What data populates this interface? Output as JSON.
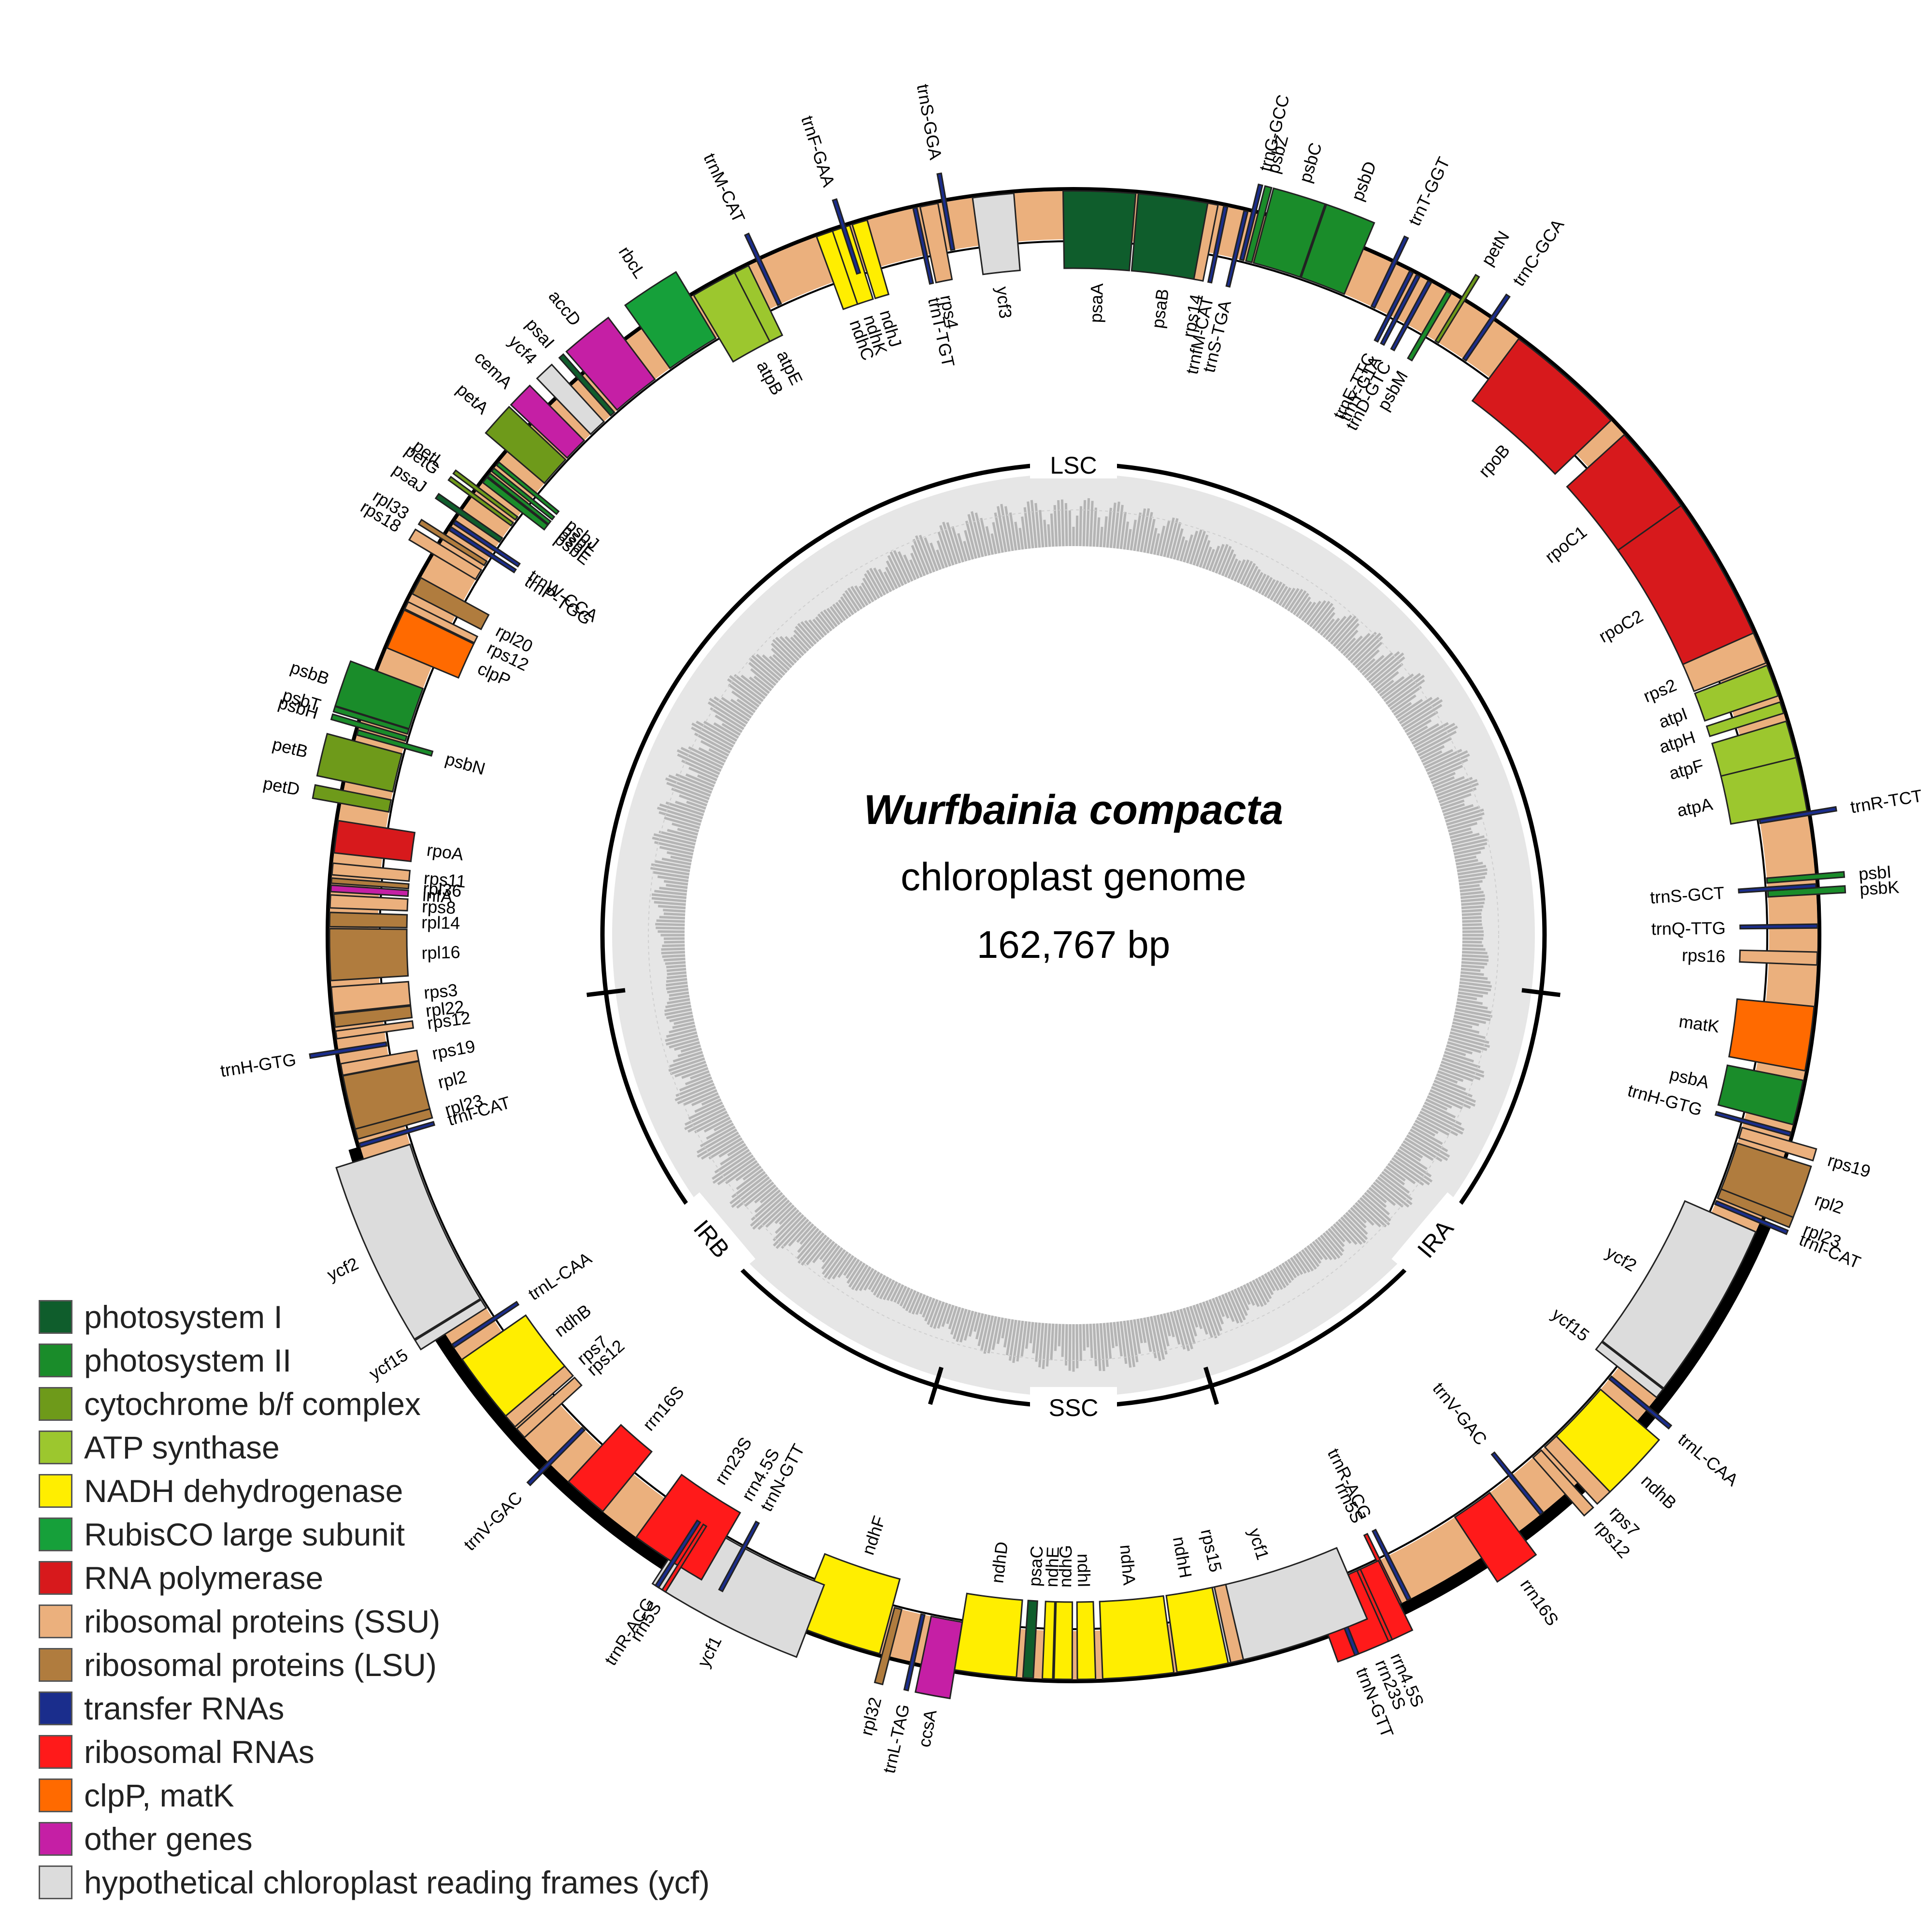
{
  "title": {
    "species": "Wurfbainia compacta",
    "subtitle": "chloroplast genome",
    "size": "162,767 bp"
  },
  "regions": [
    {
      "label": "LSC"
    },
    {
      "label": "IRA"
    },
    {
      "label": "SSC"
    },
    {
      "label": "IRB"
    }
  ],
  "categories": [
    {
      "key": "psI",
      "label": "photosystem I",
      "color": "#0f5d2c"
    },
    {
      "key": "psII",
      "label": "photosystem II",
      "color": "#1a8c2a"
    },
    {
      "key": "cyt",
      "label": "cytochrome b/f complex",
      "color": "#6e9a1a"
    },
    {
      "key": "atp",
      "label": "ATP synthase",
      "color": "#9cc72e"
    },
    {
      "key": "ndh",
      "label": "NADH dehydrogenase",
      "color": "#ffee00"
    },
    {
      "key": "rbc",
      "label": "RubisCO large subunit",
      "color": "#16a03a"
    },
    {
      "key": "rpo",
      "label": "RNA polymerase",
      "color": "#d7191c"
    },
    {
      "key": "ssu",
      "label": "ribosomal proteins (SSU)",
      "color": "#ebb07d"
    },
    {
      "key": "lsu",
      "label": "ribosomal proteins (LSU)",
      "color": "#b07c3e"
    },
    {
      "key": "trna",
      "label": "transfer RNAs",
      "color": "#1a2d8c"
    },
    {
      "key": "rrna",
      "label": "ribosomal RNAs",
      "color": "#ff1a1a"
    },
    {
      "key": "clp",
      "label": "clpP, matK",
      "color": "#ff6a00"
    },
    {
      "key": "other",
      "label": "other genes",
      "color": "#c51fa5"
    },
    {
      "key": "ycf",
      "label": "hypothetical chloroplast reading frames (ycf)",
      "color": "#dcdcdc"
    }
  ],
  "genes": [
    {
      "name": "psaA",
      "cat": "psI",
      "a": 2.0,
      "s": 5.6,
      "side": "in"
    },
    {
      "name": "psaB",
      "cat": "psI",
      "a": 7.8,
      "s": 5.6,
      "side": "in"
    },
    {
      "name": "rps14",
      "cat": "ssu",
      "a": 10.8,
      "s": 0.8,
      "side": "in"
    },
    {
      "name": "trnfM-CAT",
      "cat": "trna",
      "a": 11.8,
      "s": 0.3,
      "side": "in"
    },
    {
      "name": "trnS-TGA",
      "cat": "trna",
      "a": 13.4,
      "s": 0.3,
      "side": "in"
    },
    {
      "name": "trnG-GCC",
      "cat": "trna",
      "a": 14.0,
      "s": 0.3,
      "side": "out"
    },
    {
      "name": "psbZ",
      "cat": "psII",
      "a": 14.6,
      "s": 0.5,
      "side": "out"
    },
    {
      "name": "psbC",
      "cat": "psII",
      "a": 17.0,
      "s": 4.0,
      "side": "out"
    },
    {
      "name": "psbD",
      "cat": "psII",
      "a": 21.0,
      "s": 3.8,
      "side": "out"
    },
    {
      "name": "trnT-GGT",
      "cat": "trna",
      "a": 25.5,
      "s": 0.3,
      "side": "out"
    },
    {
      "name": "trnE-TTC",
      "cat": "trna",
      "a": 27.0,
      "s": 0.3,
      "side": "in"
    },
    {
      "name": "trnY-GTA",
      "cat": "trna",
      "a": 27.6,
      "s": 0.3,
      "side": "in"
    },
    {
      "name": "trnD-GTC",
      "cat": "trna",
      "a": 28.6,
      "s": 0.3,
      "side": "in"
    },
    {
      "name": "psbM",
      "cat": "psII",
      "a": 30.3,
      "s": 0.4,
      "side": "in"
    },
    {
      "name": "petN",
      "cat": "cyt",
      "a": 31.5,
      "s": 0.3,
      "side": "out"
    },
    {
      "name": "trnC-GCA",
      "cat": "trna",
      "a": 34.2,
      "s": 0.3,
      "side": "out"
    },
    {
      "name": "rpoB",
      "cat": "rpo",
      "a": 41.5,
      "s": 9.5,
      "side": "in"
    },
    {
      "name": "rpoC1",
      "cat": "rpo",
      "a": 51.5,
      "s": 7.5,
      "side": "in"
    },
    {
      "name": "rpoC2",
      "cat": "rpo",
      "a": 60.5,
      "s": 11.5,
      "side": "in"
    },
    {
      "name": "rps2",
      "cat": "ssu",
      "a": 67.3,
      "s": 2.5,
      "side": "in"
    },
    {
      "name": "atpI",
      "cat": "atp",
      "a": 70.0,
      "s": 2.5,
      "side": "in"
    },
    {
      "name": "atpH",
      "cat": "atp",
      "a": 72.2,
      "s": 0.9,
      "side": "in"
    },
    {
      "name": "atpF",
      "cat": "atp",
      "a": 74.8,
      "s": 3.0,
      "side": "in"
    },
    {
      "name": "atpA",
      "cat": "atp",
      "a": 78.3,
      "s": 4.2,
      "side": "in"
    },
    {
      "name": "trnR-TCT",
      "cat": "trna",
      "a": 80.6,
      "s": 0.3,
      "side": "out"
    },
    {
      "name": "psbI",
      "cat": "psII",
      "a": 85.5,
      "s": 0.4,
      "side": "out"
    },
    {
      "name": "psbK",
      "cat": "psII",
      "a": 86.6,
      "s": 0.5,
      "side": "out"
    },
    {
      "name": "trnS-GCT",
      "cat": "trna",
      "a": 86.2,
      "s": 0.3,
      "side": "in"
    },
    {
      "name": "trnQ-TTG",
      "cat": "trna",
      "a": 89.3,
      "s": 0.3,
      "side": "in"
    },
    {
      "name": "rps16",
      "cat": "ssu",
      "a": 91.8,
      "s": 1.0,
      "side": "in"
    },
    {
      "name": "matK",
      "cat": "clp",
      "a": 98.0,
      "s": 5.0,
      "side": "in"
    },
    {
      "name": "psbA",
      "cat": "psII",
      "a": 103.0,
      "s": 3.5,
      "side": "in"
    },
    {
      "name": "trnH-GTG",
      "cat": "trna",
      "a": 105.5,
      "s": 0.3,
      "side": "in"
    },
    {
      "name": "rps19",
      "cat": "ssu",
      "a": 106.5,
      "s": 0.9,
      "side": "out"
    },
    {
      "name": "rpl2",
      "cat": "lsu",
      "a": 109.5,
      "s": 4.2,
      "side": "out"
    },
    {
      "name": "rpl23",
      "cat": "lsu",
      "a": 111.8,
      "s": 0.8,
      "side": "out"
    },
    {
      "name": "trnI-CAT",
      "cat": "trna",
      "a": 112.6,
      "s": 0.3,
      "side": "out"
    },
    {
      "name": "ycf2",
      "cat": "ycf",
      "a": 120.5,
      "s": 14.0,
      "side": "in"
    },
    {
      "name": "ycf15",
      "cat": "ycf",
      "a": 128.0,
      "s": 0.8,
      "side": "in"
    },
    {
      "name": "trnL-CAA",
      "cat": "trna",
      "a": 129.5,
      "s": 0.3,
      "side": "out"
    },
    {
      "name": "ndhB",
      "cat": "ndh",
      "a": 133.5,
      "s": 5.5,
      "side": "out"
    },
    {
      "name": "rps7",
      "cat": "ssu",
      "a": 136.7,
      "s": 1.3,
      "side": "out"
    },
    {
      "name": "rps12",
      "cat": "ssu",
      "a": 138.2,
      "s": 0.9,
      "side": "out"
    },
    {
      "name": "trnV-GAC",
      "cat": "trna",
      "a": 141.0,
      "s": 0.3,
      "side": "in"
    },
    {
      "name": "rrn16S",
      "cat": "rrna",
      "a": 145.0,
      "s": 3.5,
      "side": "out"
    },
    {
      "name": "trnR-ACG",
      "cat": "trna",
      "a": 153.2,
      "s": 0.3,
      "side": "in"
    },
    {
      "name": "rrn5S",
      "cat": "rrna",
      "a": 154.0,
      "s": 0.3,
      "side": "in"
    },
    {
      "name": "rrn23S",
      "cat": "rrna",
      "a": 157.0,
      "s": 6.0,
      "side": "out"
    },
    {
      "name": "rrn4.5S",
      "cat": "rrna",
      "a": 155.8,
      "s": 0.3,
      "side": "out"
    },
    {
      "name": "trnN-GTT",
      "cat": "trna",
      "a": 158.5,
      "s": 0.3,
      "side": "out"
    },
    {
      "name": "ycf1",
      "cat": "ycf",
      "a": 163.0,
      "s": 12.5,
      "side": "in"
    },
    {
      "name": "rps15",
      "cat": "ssu",
      "a": 167.3,
      "s": 1.0,
      "side": "in"
    },
    {
      "name": "ndhH",
      "cat": "ndh",
      "a": 170.0,
      "s": 4.0,
      "side": "in"
    },
    {
      "name": "ndhA",
      "cat": "ndh",
      "a": 175.0,
      "s": 5.5,
      "side": "in"
    },
    {
      "name": "ndhI",
      "cat": "ndh",
      "a": 179.0,
      "s": 1.4,
      "side": "in"
    },
    {
      "name": "ndhG",
      "cat": "ndh",
      "a": 180.8,
      "s": 1.4,
      "side": "in"
    },
    {
      "name": "ndhE",
      "cat": "ndh",
      "a": 182.0,
      "s": 0.8,
      "side": "in"
    },
    {
      "name": "psaC",
      "cat": "psI",
      "a": 183.5,
      "s": 0.8,
      "side": "in"
    },
    {
      "name": "ndhD",
      "cat": "ndh",
      "a": 186.8,
      "s": 4.8,
      "side": "in"
    },
    {
      "name": "ccsA",
      "cat": "other",
      "a": 190.5,
      "s": 2.6,
      "side": "out"
    },
    {
      "name": "trnL-TAG",
      "cat": "trna",
      "a": 192.5,
      "s": 0.3,
      "side": "out"
    },
    {
      "name": "rpl32",
      "cat": "lsu",
      "a": 194.6,
      "s": 0.6,
      "side": "out"
    },
    {
      "name": "ndhF",
      "cat": "ndh",
      "a": 198.5,
      "s": 6.8,
      "side": "in"
    },
    {
      "name": "ycf1",
      "cat": "ycf",
      "a": 207.0,
      "s": 12.0,
      "side": "out"
    },
    {
      "name": "trnN-GTT",
      "cat": "trna",
      "a": 208.3,
      "s": 0.3,
      "side": "in"
    },
    {
      "name": "rrn4.5S",
      "cat": "rrna",
      "a": 210.2,
      "s": 0.3,
      "side": "in"
    },
    {
      "name": "rrn23S",
      "cat": "rrna",
      "a": 213.0,
      "s": 6.0,
      "side": "in"
    },
    {
      "name": "rrn5S",
      "cat": "rrna",
      "a": 212.0,
      "s": 0.3,
      "side": "out"
    },
    {
      "name": "trnR-ACG",
      "cat": "trna",
      "a": 212.6,
      "s": 0.3,
      "side": "out"
    },
    {
      "name": "rrn16S",
      "cat": "rrna",
      "a": 221.0,
      "s": 3.5,
      "side": "in"
    },
    {
      "name": "trnV-GAC",
      "cat": "trna",
      "a": 224.8,
      "s": 0.3,
      "side": "out"
    },
    {
      "name": "rps12",
      "cat": "ssu",
      "a": 228.0,
      "s": 0.9,
      "side": "in"
    },
    {
      "name": "rps7",
      "cat": "ssu",
      "a": 229.3,
      "s": 1.3,
      "side": "in"
    },
    {
      "name": "ndhB",
      "cat": "ndh",
      "a": 232.5,
      "s": 5.5,
      "side": "in"
    },
    {
      "name": "trnL-CAA",
      "cat": "trna",
      "a": 236.5,
      "s": 0.3,
      "side": "in"
    },
    {
      "name": "ycf15",
      "cat": "ycf",
      "a": 238.0,
      "s": 0.8,
      "side": "out"
    },
    {
      "name": "ycf2",
      "cat": "ycf",
      "a": 245.5,
      "s": 14.0,
      "side": "out"
    },
    {
      "name": "trnI-CAT",
      "cat": "trna",
      "a": 253.6,
      "s": 0.3,
      "side": "in"
    },
    {
      "name": "rpl23",
      "cat": "lsu",
      "a": 254.5,
      "s": 0.8,
      "side": "in"
    },
    {
      "name": "rpl2",
      "cat": "lsu",
      "a": 257.0,
      "s": 4.2,
      "side": "in"
    },
    {
      "name": "rps19",
      "cat": "ssu",
      "a": 259.6,
      "s": 0.9,
      "side": "in"
    },
    {
      "name": "trnH-GTG",
      "cat": "trna",
      "a": 261.0,
      "s": 0.3,
      "side": "out"
    },
    {
      "name": "rps12",
      "cat": "ssu",
      "a": 262.3,
      "s": 0.6,
      "side": "in"
    },
    {
      "name": "rpl22",
      "cat": "lsu",
      "a": 263.4,
      "s": 1.0,
      "side": "in"
    },
    {
      "name": "rps3",
      "cat": "ssu",
      "a": 265.0,
      "s": 2.0,
      "side": "in"
    },
    {
      "name": "rpl16",
      "cat": "lsu",
      "a": 268.5,
      "s": 4.0,
      "side": "in"
    },
    {
      "name": "rpl14",
      "cat": "lsu",
      "a": 271.2,
      "s": 1.1,
      "side": "in"
    },
    {
      "name": "rps8",
      "cat": "ssu",
      "a": 272.6,
      "s": 1.0,
      "side": "in"
    },
    {
      "name": "infA",
      "cat": "other",
      "a": 273.6,
      "s": 0.5,
      "side": "in"
    },
    {
      "name": "rpl36",
      "cat": "lsu",
      "a": 274.2,
      "s": 0.4,
      "side": "in"
    },
    {
      "name": "rps11",
      "cat": "ssu",
      "a": 275.1,
      "s": 0.9,
      "side": "in"
    },
    {
      "name": "rpoA",
      "cat": "rpo",
      "a": 277.6,
      "s": 2.5,
      "side": "in"
    },
    {
      "name": "petD",
      "cat": "cyt",
      "a": 280.7,
      "s": 1.0,
      "side": "out"
    },
    {
      "name": "petB",
      "cat": "cyt",
      "a": 283.5,
      "s": 3.2,
      "side": "out"
    },
    {
      "name": "psbN",
      "cat": "psII",
      "a": 285.8,
      "s": 0.4,
      "side": "in"
    },
    {
      "name": "psbH",
      "cat": "psII",
      "a": 286.4,
      "s": 0.4,
      "side": "out"
    },
    {
      "name": "psbT",
      "cat": "psII",
      "a": 287.0,
      "s": 0.4,
      "side": "out"
    },
    {
      "name": "psbB",
      "cat": "psII",
      "a": 289.0,
      "s": 3.5,
      "side": "out"
    },
    {
      "name": "clpP",
      "cat": "clp",
      "a": 294.3,
      "s": 3.2,
      "side": "in"
    },
    {
      "name": "rps12",
      "cat": "ssu",
      "a": 296.3,
      "s": 0.6,
      "side": "in"
    },
    {
      "name": "rpl20",
      "cat": "lsu",
      "a": 298.0,
      "s": 1.4,
      "side": "in"
    },
    {
      "name": "rps18",
      "cat": "ssu",
      "a": 301.2,
      "s": 0.9,
      "side": "out"
    },
    {
      "name": "rpl33",
      "cat": "lsu",
      "a": 302.3,
      "s": 0.4,
      "side": "out"
    },
    {
      "name": "trnP-TGG",
      "cat": "trna",
      "a": 303.1,
      "s": 0.3,
      "side": "in"
    },
    {
      "name": "trnW-CCA",
      "cat": "trna",
      "a": 303.7,
      "s": 0.3,
      "side": "in"
    },
    {
      "name": "psaJ",
      "cat": "psI",
      "a": 304.6,
      "s": 0.4,
      "side": "out"
    },
    {
      "name": "petG",
      "cat": "cyt",
      "a": 306.2,
      "s": 0.3,
      "side": "out"
    },
    {
      "name": "petL",
      "cat": "cyt",
      "a": 306.8,
      "s": 0.3,
      "side": "out"
    },
    {
      "name": "psbE",
      "cat": "psII",
      "a": 307.7,
      "s": 0.5,
      "side": "in"
    },
    {
      "name": "psbF",
      "cat": "psII",
      "a": 308.2,
      "s": 0.3,
      "side": "in"
    },
    {
      "name": "psbL",
      "cat": "psII",
      "a": 308.7,
      "s": 0.3,
      "side": "in"
    },
    {
      "name": "psbJ",
      "cat": "psII",
      "a": 309.3,
      "s": 0.3,
      "side": "in"
    },
    {
      "name": "petA",
      "cat": "cyt",
      "a": 311.8,
      "s": 2.6,
      "side": "out"
    },
    {
      "name": "cemA",
      "cat": "other",
      "a": 314.3,
      "s": 2.0,
      "side": "out"
    },
    {
      "name": "ycf4",
      "cat": "ycf",
      "a": 316.8,
      "s": 1.5,
      "side": "out"
    },
    {
      "name": "psaI",
      "cat": "psI",
      "a": 318.5,
      "s": 0.4,
      "side": "out"
    },
    {
      "name": "accD",
      "cat": "other",
      "a": 321.0,
      "s": 4.0,
      "side": "out"
    },
    {
      "name": "rbcL",
      "cat": "rbc",
      "a": 326.8,
      "s": 4.5,
      "side": "out"
    },
    {
      "name": "atpB",
      "cat": "atp",
      "a": 331.5,
      "s": 4.4,
      "side": "in"
    },
    {
      "name": "atpE",
      "cat": "atp",
      "a": 333.5,
      "s": 1.2,
      "side": "in"
    },
    {
      "name": "trnM-CAT",
      "cat": "trna",
      "a": 335.0,
      "s": 0.3,
      "side": "out"
    },
    {
      "name": "ndhC",
      "cat": "ndh",
      "a": 340.5,
      "s": 1.4,
      "side": "in"
    },
    {
      "name": "ndhK",
      "cat": "ndh",
      "a": 341.8,
      "s": 1.4,
      "side": "in"
    },
    {
      "name": "ndhJ",
      "cat": "ndh",
      "a": 343.3,
      "s": 1.2,
      "side": "in"
    },
    {
      "name": "trnF-GAA",
      "cat": "trna",
      "a": 342.0,
      "s": 0.3,
      "side": "out"
    },
    {
      "name": "trnT-TGT",
      "cat": "trna",
      "a": 347.7,
      "s": 0.3,
      "side": "in"
    },
    {
      "name": "rps4",
      "cat": "ssu",
      "a": 348.8,
      "s": 1.4,
      "side": "in"
    },
    {
      "name": "trnS-GGA",
      "cat": "trna",
      "a": 350.0,
      "s": 0.3,
      "side": "out"
    },
    {
      "name": "ycf3",
      "cat": "ycf",
      "a": 353.8,
      "s": 3.2,
      "side": "in"
    }
  ]
}
